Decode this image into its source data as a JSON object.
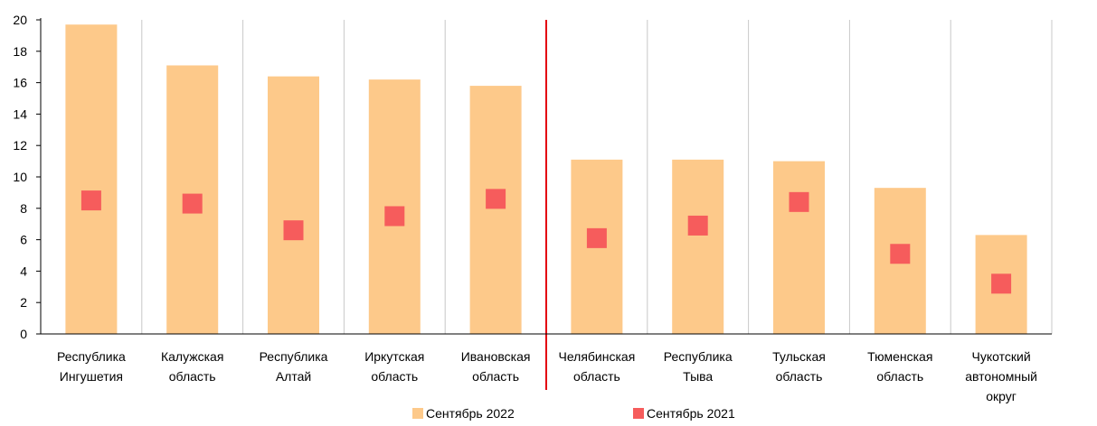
{
  "chart_data": {
    "type": "bar",
    "title": "",
    "xlabel": "",
    "ylabel": "",
    "ylim": [
      0,
      20
    ],
    "yticks": [
      0,
      2,
      4,
      6,
      8,
      10,
      12,
      14,
      16,
      18,
      20
    ],
    "grid": "vertical lines between categories",
    "legend_position": "bottom",
    "categories": [
      [
        "Республика",
        "Ингушетия"
      ],
      [
        "Калужская",
        "область"
      ],
      [
        "Республика",
        "Алтай"
      ],
      [
        "Иркутская",
        "область"
      ],
      [
        "Ивановская",
        "область"
      ],
      [
        "Челябинская",
        "область"
      ],
      [
        "Республика",
        "Тыва"
      ],
      [
        "Тульская",
        "область"
      ],
      [
        "Тюменская",
        "область"
      ],
      [
        "Чукотский",
        "автономный",
        "округ"
      ]
    ],
    "separator_after_category": 5,
    "series": [
      {
        "name": "Сентябрь 2022",
        "mark": "bar",
        "color": "#FDC98A",
        "values": [
          19.7,
          17.1,
          16.4,
          16.2,
          15.8,
          11.1,
          11.1,
          11.0,
          9.3,
          6.3
        ]
      },
      {
        "name": "Сентябрь 2021",
        "mark": "square",
        "color": "#F65C5C",
        "values": [
          8.5,
          8.3,
          6.6,
          7.5,
          8.6,
          6.1,
          6.9,
          8.4,
          5.1,
          3.2
        ]
      }
    ],
    "separator_color": "#E3000F"
  }
}
